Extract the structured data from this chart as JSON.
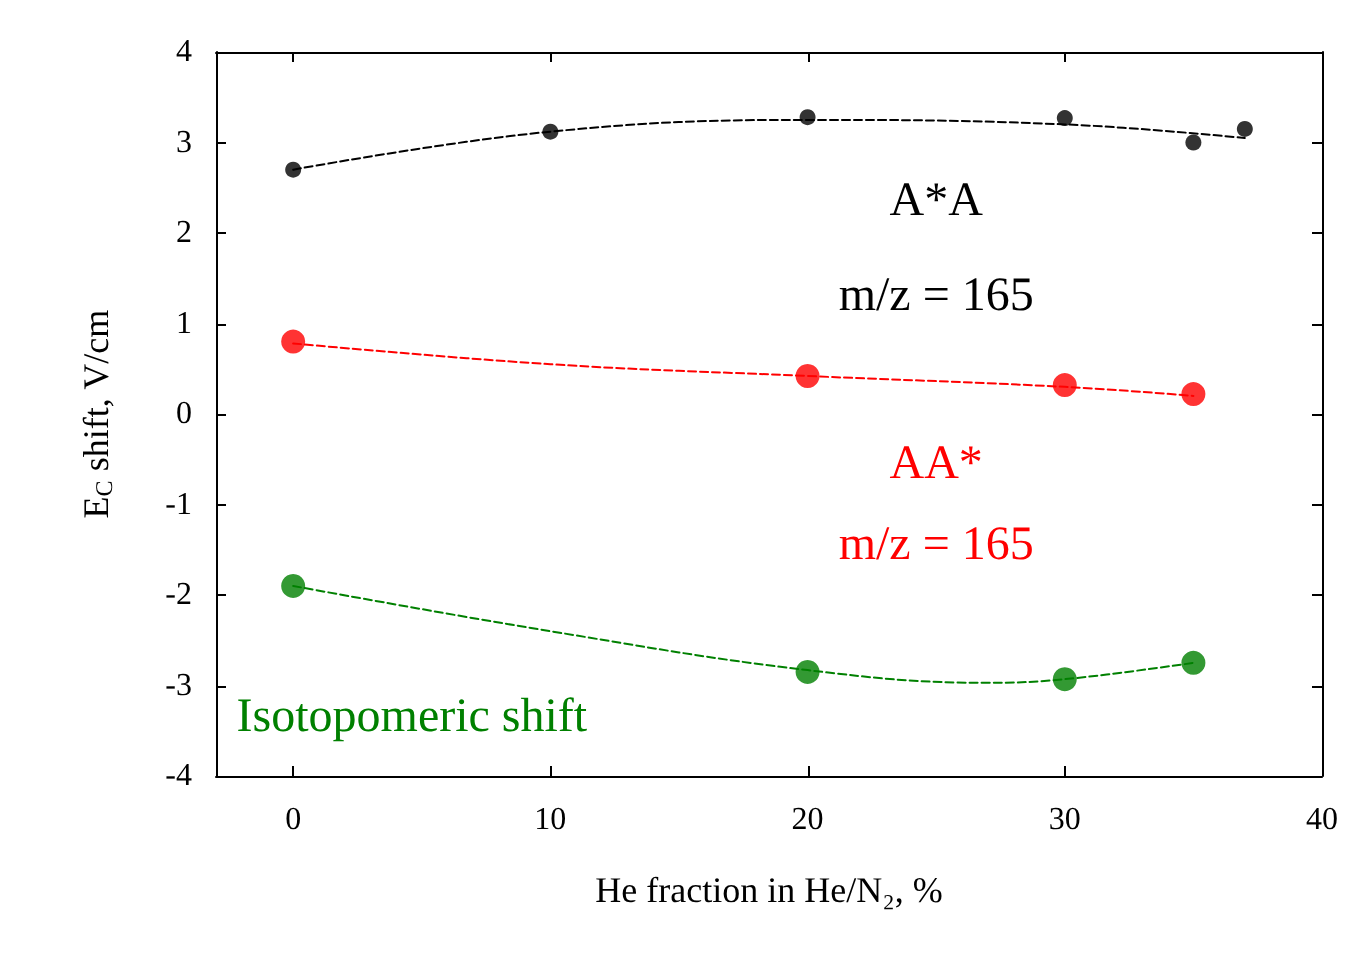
{
  "chart_data": {
    "type": "scatter",
    "xlabel": "He fraction in He/N₂, %",
    "ylabel": "E$_{C}$ shift, V/cm",
    "xlim": [
      -3,
      40
    ],
    "xticks": [
      0,
      10,
      20,
      30,
      40
    ],
    "ylim": [
      -4,
      4
    ],
    "yticks": [
      -4,
      -3,
      -2,
      -1,
      0,
      1,
      2,
      3,
      4
    ],
    "grid": false,
    "legend": false,
    "series": [
      {
        "name": "A*A",
        "color": "#000000",
        "marker": "circle",
        "x": [
          0,
          10,
          20,
          30,
          35,
          37
        ],
        "values": [
          2.7,
          3.12,
          3.28,
          3.27,
          3.0,
          3.15
        ]
      },
      {
        "name": "AA*",
        "color": "#ff0000",
        "marker": "circle",
        "x": [
          0,
          20,
          30,
          35
        ],
        "values": [
          0.8,
          0.42,
          0.32,
          0.22
        ]
      },
      {
        "name": "Isotopomeric shift",
        "color": "#008000",
        "marker": "circle",
        "x": [
          0,
          20,
          30,
          35
        ],
        "values": [
          -1.9,
          -2.85,
          -2.93,
          -2.75
        ]
      },
      {
        "color": "#000000",
        "type": "line",
        "line_style": "dashed",
        "x": [
          0,
          10,
          20,
          30,
          37
        ],
        "values": [
          2.7,
          3.12,
          3.25,
          3.2,
          3.05
        ]
      },
      {
        "color": "#ff0000",
        "type": "line",
        "line_style": "dashed",
        "x": [
          0,
          10,
          20,
          30,
          35
        ],
        "values": [
          0.78,
          0.55,
          0.42,
          0.3,
          0.2
        ]
      },
      {
        "color": "#008000",
        "type": "line",
        "line_style": "dashed",
        "x": [
          0,
          10,
          20,
          27,
          30,
          35
        ],
        "values": [
          -1.9,
          -2.4,
          -2.83,
          -2.97,
          -2.93,
          -2.75
        ]
      }
    ],
    "annotations": [
      "m/z = 165",
      "m/z = 165"
    ]
  }
}
